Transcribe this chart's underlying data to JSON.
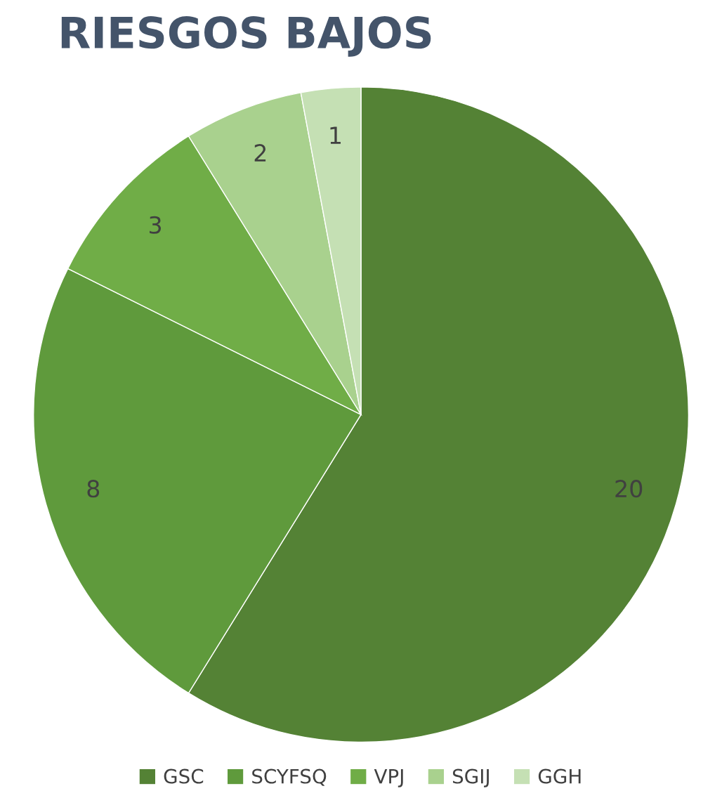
{
  "chart_data": {
    "type": "pie",
    "title": "RIESGOS BAJOS",
    "categories": [
      "GSC",
      "SCYFSQ",
      "VPJ",
      "SGIJ",
      "GGH"
    ],
    "values": [
      20,
      8,
      3,
      2,
      1
    ],
    "colors": [
      "#548235",
      "#5f9a3c",
      "#70ad47",
      "#a9d18e",
      "#c5e0b4"
    ],
    "data_labels": true,
    "legend": "bottom"
  }
}
